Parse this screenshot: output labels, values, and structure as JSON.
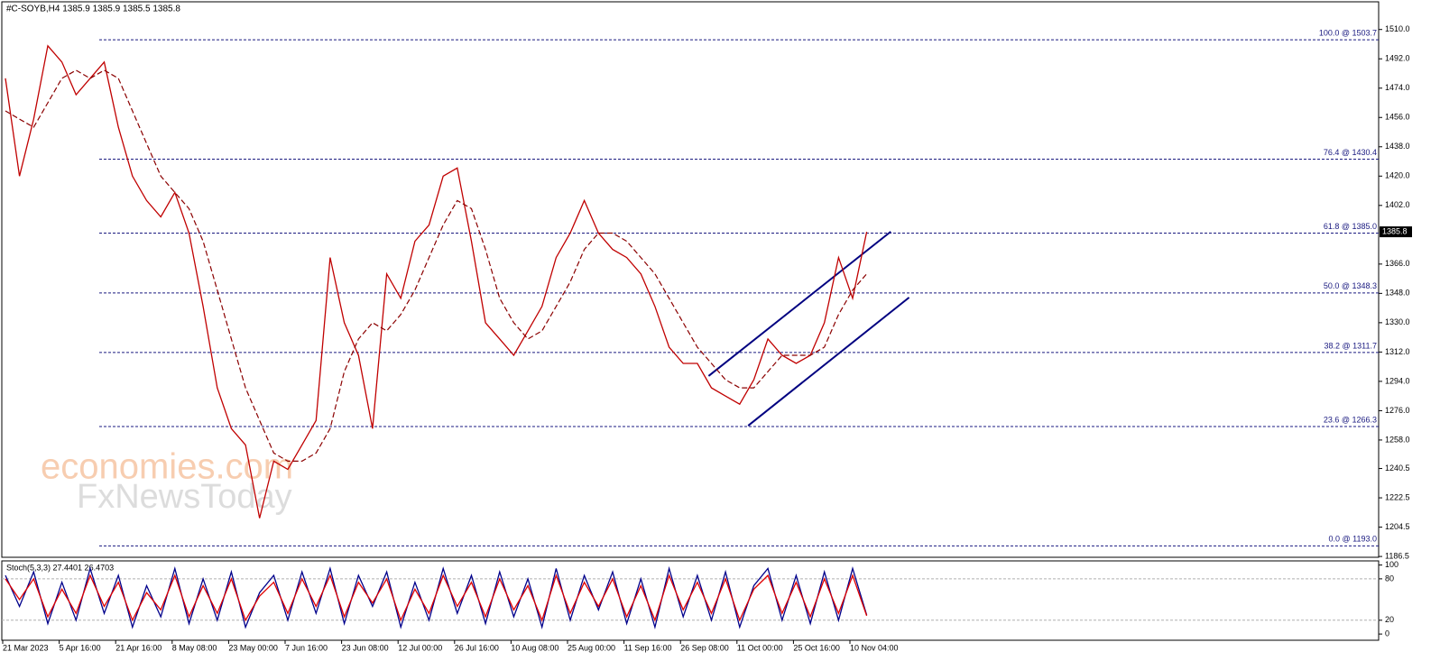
{
  "chart_data": [
    {
      "type": "line",
      "title": "#C-SOYB,H4 1385.9 1385.9 1385.5 1385.8",
      "categories": [
        "21 Mar 2023",
        null,
        null,
        null,
        "5 Apr 16:00",
        null,
        null,
        null,
        "21 Apr 16:00",
        null,
        null,
        null,
        "8 May 08:00",
        null,
        null,
        null,
        "23 May 00:00",
        null,
        null,
        null,
        "7 Jun 16:00",
        null,
        null,
        null,
        "23 Jun 08:00",
        null,
        null,
        null,
        "12 Jul 00:00",
        null,
        null,
        null,
        "26 Jul 16:00",
        null,
        null,
        null,
        "10 Aug 08:00",
        null,
        null,
        null,
        "25 Aug 00:00",
        null,
        null,
        null,
        "11 Sep 16:00",
        null,
        null,
        null,
        "26 Sep 08:00",
        null,
        null,
        null,
        "11 Oct 00:00",
        null,
        null,
        null,
        "25 Oct 16:00",
        null,
        null,
        null,
        "10 Nov 04:00",
        null
      ],
      "series": [
        {
          "color": "#c00000",
          "values": [
            1480,
            1420,
            1455,
            1500,
            1490,
            1470,
            1480,
            1490,
            1450,
            1420,
            1405,
            1395,
            1410,
            1385,
            1340,
            1290,
            1265,
            1255,
            1210,
            1245,
            1240,
            1255,
            1270,
            1370,
            1330,
            1310,
            1265,
            1360,
            1345,
            1380,
            1390,
            1420,
            1425,
            1380,
            1330,
            1320,
            1310,
            1325,
            1340,
            1370,
            1385,
            1405,
            1385,
            1375,
            1370,
            1360,
            1340,
            1315,
            1305,
            1305,
            1290,
            1285,
            1280,
            1295,
            1320,
            1310,
            1305,
            1310,
            1330,
            1370,
            1345,
            1385.8
          ]
        },
        {
          "color": "#8b0000",
          "dashed": true,
          "values": [
            1460,
            1455,
            1450,
            1465,
            1480,
            1485,
            1480,
            1485,
            1480,
            1460,
            1440,
            1420,
            1410,
            1400,
            1380,
            1350,
            1320,
            1290,
            1270,
            1250,
            1245,
            1245,
            1250,
            1265,
            1300,
            1320,
            1330,
            1325,
            1335,
            1350,
            1370,
            1390,
            1405,
            1400,
            1375,
            1345,
            1330,
            1320,
            1325,
            1340,
            1355,
            1375,
            1385,
            1385,
            1380,
            1370,
            1360,
            1345,
            1330,
            1315,
            1305,
            1295,
            1290,
            1290,
            1300,
            1310,
            1310,
            1310,
            1315,
            1335,
            1350,
            1360
          ]
        }
      ],
      "ylim": [
        1186,
        1527
      ],
      "yticks": [
        {
          "value": 1510,
          "label": "1510.0"
        },
        {
          "value": 1492,
          "label": "1492.0"
        },
        {
          "value": 1474,
          "label": "1474.0"
        },
        {
          "value": 1456,
          "label": "1456.0"
        },
        {
          "value": 1438,
          "label": "1438.0"
        },
        {
          "value": 1420,
          "label": "1420.0"
        },
        {
          "value": 1402,
          "label": "1402.0"
        },
        {
          "value": 1366,
          "label": "1366.0"
        },
        {
          "value": 1348,
          "label": "1348.0"
        },
        {
          "value": 1330,
          "label": "1330.0"
        },
        {
          "value": 1312,
          "label": "1312.0"
        },
        {
          "value": 1294,
          "label": "1294.0"
        },
        {
          "value": 1276,
          "label": "1276.0"
        },
        {
          "value": 1258,
          "label": "1258.0"
        },
        {
          "value": 1240.5,
          "label": "1240.5"
        },
        {
          "value": 1222.5,
          "label": "1222.5"
        },
        {
          "value": 1204.5,
          "label": "1204.5"
        },
        {
          "value": 1186.5,
          "label": "1186.5"
        }
      ],
      "current_price": 1385.8,
      "levels": [
        {
          "value": 1503.7,
          "label": "100.0 @ 1503.7"
        },
        {
          "value": 1430.4,
          "label": "76.4 @ 1430.4"
        },
        {
          "value": 1385.0,
          "label": "61.8 @ 1385.0"
        },
        {
          "value": 1348.3,
          "label": "50.0 @ 1348.3"
        },
        {
          "value": 1311.7,
          "label": "38.2 @ 1311.7"
        },
        {
          "value": 1266.3,
          "label": "23.6 @ 1266.3"
        },
        {
          "value": 1193.0,
          "label": "0.0 @ 1193.0"
        }
      ],
      "channels": [
        {
          "color": "#000080",
          "x": [
            49.8,
            62.7
          ],
          "y": [
            1297.3,
            1385.9
          ]
        },
        {
          "color": "#000080",
          "x": [
            52.6,
            64.0
          ],
          "y": [
            1266.8,
            1345.5
          ]
        }
      ],
      "watermarks": [
        "economies.com",
        "FxNewsToday"
      ]
    },
    {
      "type": "line",
      "title": "Stoch(5,3,3) 27.4401 26.4703",
      "series": [
        {
          "color": "#00008b",
          "values": [
            85,
            40,
            90,
            15,
            75,
            20,
            95,
            30,
            85,
            10,
            70,
            25,
            95,
            15,
            80,
            20,
            90,
            10,
            60,
            85,
            20,
            90,
            30,
            95,
            15,
            85,
            40,
            90,
            10,
            75,
            20,
            95,
            30,
            85,
            15,
            90,
            25,
            80,
            10,
            95,
            20,
            85,
            35,
            90,
            15,
            80,
            10,
            95,
            25,
            85,
            20,
            90,
            10,
            70,
            95,
            20,
            85,
            15,
            90,
            20,
            95,
            27.4401
          ]
        },
        {
          "color": "#e00000",
          "values": [
            80,
            50,
            80,
            25,
            65,
            30,
            85,
            40,
            75,
            20,
            60,
            35,
            85,
            25,
            70,
            30,
            80,
            20,
            55,
            75,
            30,
            80,
            40,
            85,
            25,
            75,
            45,
            80,
            20,
            65,
            30,
            85,
            40,
            75,
            25,
            80,
            35,
            70,
            20,
            85,
            30,
            75,
            40,
            80,
            25,
            70,
            20,
            85,
            35,
            75,
            30,
            80,
            20,
            65,
            85,
            30,
            75,
            25,
            80,
            30,
            85,
            26.4703
          ]
        }
      ],
      "ylim": [
        -9,
        106
      ],
      "yticks": [
        100,
        80,
        20,
        0
      ],
      "levels": [
        80,
        20
      ]
    }
  ]
}
